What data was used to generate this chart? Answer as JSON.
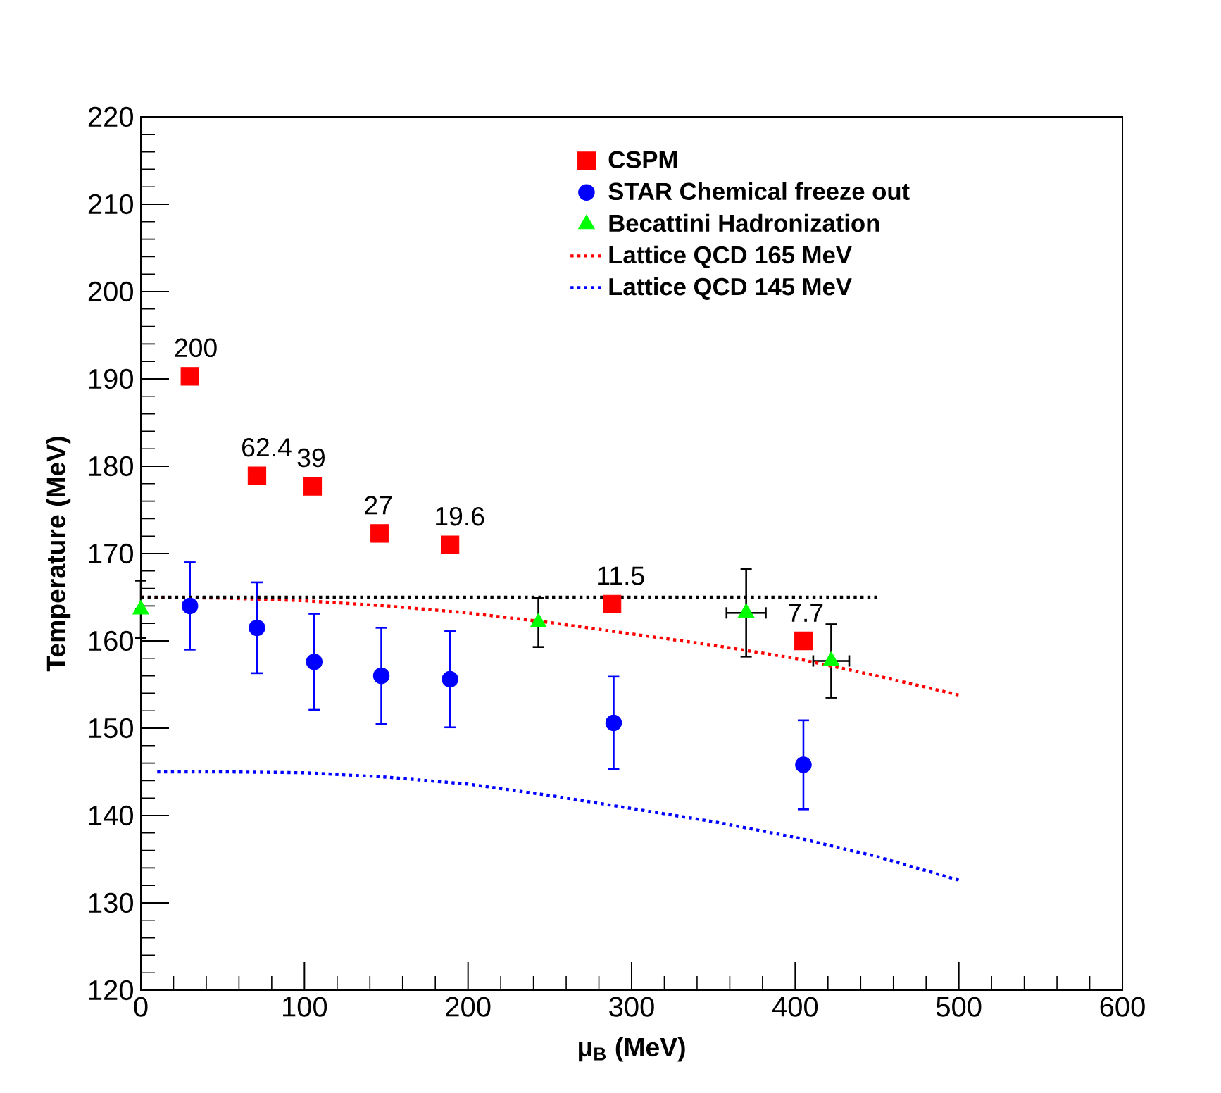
{
  "chart_data": {
    "type": "scatter",
    "xlabel": "μ$_{B}$ (MeV)",
    "ylabel": "Temperature (MeV)",
    "xlim": [
      0,
      600
    ],
    "xticks": [
      0,
      100,
      200,
      300,
      400,
      500,
      600
    ],
    "ylim": [
      120,
      220
    ],
    "yticks": [
      120,
      130,
      140,
      150,
      160,
      170,
      180,
      190,
      200,
      210,
      220
    ],
    "legend": "top right",
    "grid": false,
    "series": [
      {
        "name": "CSPM",
        "marker": "square",
        "color": "#ff0000",
        "x": [
          30,
          71,
          105,
          146,
          189,
          288,
          405
        ],
        "values": [
          190.3,
          178.9,
          177.7,
          172.3,
          171.0,
          164.2,
          160.0
        ]
      },
      {
        "name": "STAR Chemical freeze out",
        "marker": "circle",
        "color": "#0000ff",
        "x": [
          30,
          71,
          106,
          147,
          189,
          289,
          405
        ],
        "values": [
          164.0,
          161.5,
          157.6,
          156.0,
          155.6,
          150.6,
          145.8
        ],
        "errors": [
          5,
          5.2,
          5.5,
          5.5,
          5.5,
          5.3,
          5.1
        ]
      },
      {
        "name": "Becattini Hadronization",
        "marker": "triangle",
        "color": "#00ff00",
        "x": [
          0,
          243,
          370,
          422
        ],
        "values": [
          163.6,
          162.1,
          163.2,
          157.7
        ],
        "errors": [
          3.3,
          2.8,
          5,
          4.2
        ],
        "xerrors": [
          null,
          null,
          12,
          11
        ]
      },
      {
        "name": "Lattice QCD 165 MeV",
        "type": "line",
        "marker": "none",
        "line_style": "dotted",
        "color": "#ff0000",
        "x": [
          0,
          50,
          100,
          150,
          200,
          250,
          300,
          350,
          400,
          450,
          500
        ],
        "values": [
          165,
          164.9,
          164.6,
          164.0,
          163.2,
          162.1,
          160.8,
          159.5,
          158.0,
          156.0,
          153.8
        ]
      },
      {
        "name": "Lattice QCD 145 MeV",
        "type": "line",
        "marker": "none",
        "line_style": "dotted",
        "color": "#0000ff",
        "x": [
          10,
          50,
          100,
          150,
          200,
          250,
          300,
          350,
          400,
          450,
          500
        ],
        "values": [
          145,
          145,
          144.9,
          144.4,
          143.6,
          142.3,
          140.8,
          139.3,
          137.5,
          135.3,
          132.6
        ]
      },
      {
        "type": "line",
        "marker": "none",
        "line_style": "dotted",
        "color": "#000000",
        "x": [
          0,
          450
        ],
        "values": [
          165,
          165
        ]
      }
    ],
    "annotations": [
      {
        "text": "200",
        "x": 30,
        "y": 190.3
      },
      {
        "text": "62.4",
        "x": 71,
        "y": 178.9
      },
      {
        "text": "39",
        "x": 105,
        "y": 177.7
      },
      {
        "text": "27",
        "x": 146,
        "y": 172.3
      },
      {
        "text": "19.6",
        "x": 189,
        "y": 171.0
      },
      {
        "text": "11.5",
        "x": 288,
        "y": 164.2
      },
      {
        "text": "7.7",
        "x": 405,
        "y": 160.0
      }
    ]
  }
}
